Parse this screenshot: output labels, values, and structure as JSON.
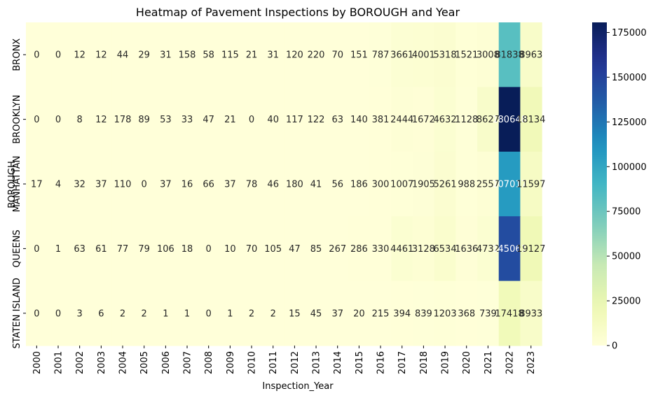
{
  "chart_data": {
    "type": "heatmap",
    "title": "Heatmap of Pavement Inspections by BOROUGH and Year",
    "xlabel": "Inspection_Year",
    "ylabel": "BOROUGH",
    "x": [
      "2000",
      "2001",
      "2002",
      "2003",
      "2004",
      "2005",
      "2006",
      "2007",
      "2008",
      "2009",
      "2010",
      "2011",
      "2012",
      "2013",
      "2014",
      "2015",
      "2016",
      "2017",
      "2018",
      "2019",
      "2020",
      "2021",
      "2022",
      "2023"
    ],
    "y": [
      "BRONX",
      "BROOKLYN",
      "MANHATTAN",
      "QUEENS",
      "STATEN ISLAND"
    ],
    "values": [
      [
        0,
        0,
        12,
        12,
        44,
        29,
        31,
        158,
        58,
        115,
        21,
        31,
        120,
        220,
        70,
        151,
        787,
        3661,
        4001,
        5318,
        1521,
        3008,
        81838,
        8963
      ],
      [
        0,
        0,
        8,
        12,
        178,
        89,
        53,
        33,
        47,
        21,
        0,
        40,
        117,
        122,
        63,
        140,
        381,
        2444,
        1672,
        4632,
        1128,
        8627,
        180648,
        18134
      ],
      [
        17,
        4,
        32,
        37,
        110,
        0,
        37,
        16,
        66,
        37,
        78,
        46,
        180,
        41,
        56,
        186,
        300,
        1007,
        1905,
        5261,
        988,
        2557,
        107017,
        11597
      ],
      [
        0,
        1,
        63,
        61,
        77,
        79,
        106,
        18,
        0,
        10,
        70,
        105,
        47,
        85,
        267,
        286,
        330,
        4461,
        3128,
        6534,
        1636,
        4732,
        145061,
        19127
      ],
      [
        0,
        0,
        3,
        6,
        2,
        2,
        1,
        1,
        0,
        1,
        2,
        2,
        15,
        45,
        37,
        20,
        215,
        394,
        839,
        1203,
        368,
        739,
        17418,
        8933
      ]
    ],
    "colormap": "YlGnBu",
    "colorbar": {
      "range": [
        0,
        180648
      ],
      "ticks": [
        0,
        25000,
        50000,
        75000,
        100000,
        125000,
        150000,
        175000
      ]
    }
  }
}
